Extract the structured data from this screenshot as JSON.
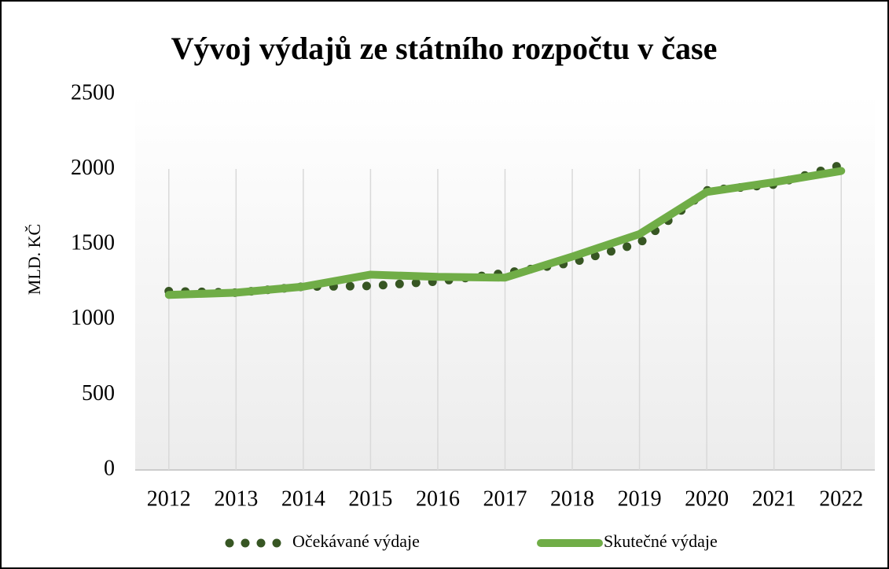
{
  "chart_data": {
    "type": "line",
    "title": "Vývoj výdajů ze státního rozpočtu v čase",
    "y_label": "MLD. KČ",
    "categories": [
      "2012",
      "2013",
      "2014",
      "2015",
      "2016",
      "2017",
      "2018",
      "2019",
      "2020",
      "2021",
      "2022"
    ],
    "series": [
      {
        "name": "Očekávané výdaje",
        "color": "#375623",
        "style": "dotted",
        "values": [
          1190,
          1180,
          1220,
          1225,
          1255,
          1310,
          1380,
          1510,
          1860,
          1900,
          2030
        ]
      },
      {
        "name": "Skutečné výdaje",
        "color": "#70ad47",
        "style": "solid",
        "values": [
          1165,
          1180,
          1220,
          1300,
          1285,
          1280,
          1420,
          1570,
          1850,
          1915,
          1990
        ]
      }
    ],
    "ylim": [
      0,
      2500
    ],
    "yticks": [
      0,
      500,
      1000,
      1500,
      2000,
      2500
    ],
    "grid": "vertical",
    "legend": "bottom"
  }
}
